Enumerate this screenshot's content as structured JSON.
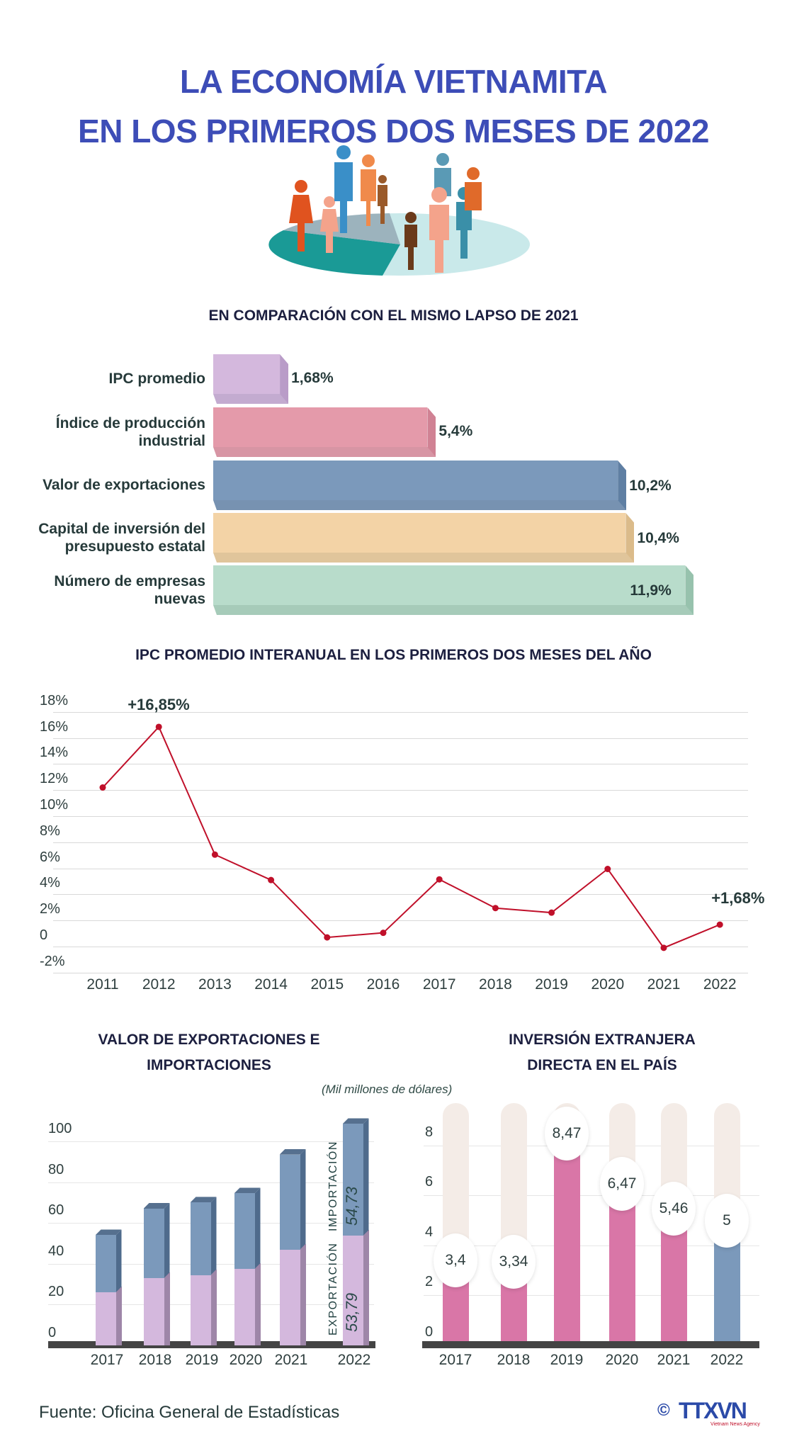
{
  "title": {
    "line1": "LA ECONOMÍA VIETNAMITA",
    "line2": "EN LOS PRIMEROS DOS MESES DE 2022"
  },
  "colors": {
    "title": "#3d4db7",
    "line": "#c0102a",
    "export": "#d4b8dd",
    "import": "#7b99bb",
    "fdi": "#d976a7",
    "fdi_2022": "#7b99bb"
  },
  "chart_data": [
    {
      "type": "bar",
      "orientation": "horizontal",
      "title": "EN COMPARACIÓN CON EL MISMO LAPSO DE 2021",
      "categories": [
        "IPC promedio",
        "Índice de producción\nindustrial",
        "Valor de exportaciones",
        "Capital de inversión del\npresupuesto estatal",
        "Número de empresas\nnuevas"
      ],
      "values": [
        1.68,
        5.4,
        10.2,
        10.4,
        11.9
      ],
      "value_labels": [
        "1,68%",
        "5,4%",
        "10,2%",
        "10,4%",
        "11,9%"
      ],
      "colors": [
        "#d4b8dd",
        "#e49aaa",
        "#7b99bb",
        "#f3d3a6",
        "#b8dccb"
      ],
      "side_colors": [
        "#b99cc8",
        "#d08294",
        "#5f7fa3",
        "#dbbb8a",
        "#97c2ad"
      ]
    },
    {
      "type": "line",
      "title": "IPC PROMEDIO INTERANUAL EN LOS PRIMEROS DOS MESES DEL AÑO",
      "x": [
        "2011",
        "2012",
        "2013",
        "2014",
        "2015",
        "2016",
        "2017",
        "2018",
        "2019",
        "2020",
        "2021",
        "2022"
      ],
      "values": [
        12.2,
        16.85,
        7.05,
        5.1,
        0.7,
        1.05,
        5.15,
        2.95,
        2.6,
        5.95,
        -0.1,
        1.68
      ],
      "y_ticks": [
        "18%",
        "16%",
        "14%",
        "12%",
        "10%",
        "8%",
        "6%",
        "4%",
        "2%",
        "0",
        "-2%"
      ],
      "y_tick_values": [
        18,
        16,
        14,
        12,
        10,
        8,
        6,
        4,
        2,
        0,
        -2
      ],
      "ylim": [
        -2,
        18
      ],
      "grid": true,
      "annotations": [
        {
          "x": "2012",
          "text": "+16,85%"
        },
        {
          "x": "2022",
          "text": "+1,68%"
        }
      ]
    },
    {
      "type": "bar",
      "stacked": true,
      "title": "VALOR DE EXPORTACIONES E IMPORTACIONES",
      "unit_note": "(Mil millones de dólares)",
      "categories": [
        "2017",
        "2018",
        "2019",
        "2020",
        "2021",
        "2022"
      ],
      "series": [
        {
          "name": "EXPORTACIÓN",
          "values": [
            26,
            33,
            34.5,
            37.5,
            47,
            53.79
          ]
        },
        {
          "name": "IMPORTACIÓN",
          "values": [
            28,
            34,
            35.5,
            37,
            46.5,
            54.73
          ]
        }
      ],
      "annotations": [
        {
          "x": "2022",
          "series": "EXPORTACIÓN",
          "text": "53,79"
        },
        {
          "x": "2022",
          "series": "IMPORTACIÓN",
          "text": "54,73"
        }
      ],
      "y_ticks": [
        "100",
        "80",
        "60",
        "40",
        "20",
        "0"
      ],
      "y_tick_values": [
        100,
        80,
        60,
        40,
        20,
        0
      ],
      "ylim": [
        0,
        110
      ],
      "grid": true
    },
    {
      "type": "bar",
      "title": "INVERSIÓN EXTRANJERA DIRECTA EN EL PAÍS",
      "categories": [
        "2017",
        "2018",
        "2019",
        "2020",
        "2021",
        "2022"
      ],
      "values": [
        3.4,
        3.34,
        8.47,
        6.47,
        5.46,
        5
      ],
      "value_labels": [
        "3,4",
        "3,34",
        "8,47",
        "6,47",
        "5,46",
        "5"
      ],
      "y_ticks": [
        "8",
        "6",
        "4",
        "2",
        "0"
      ],
      "y_tick_values": [
        8,
        6,
        4,
        2,
        0
      ],
      "ylim": [
        0,
        9.7
      ],
      "grid": true
    }
  ],
  "footer": {
    "source": "Fuente: Oficina General de Estadísticas",
    "logo_text": "TTXVN",
    "logo_sub": "Vietnam News Agency",
    "copyright": "©"
  }
}
